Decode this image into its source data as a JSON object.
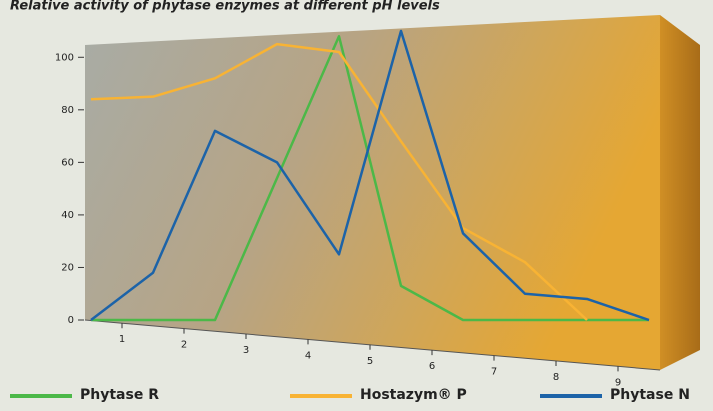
{
  "chart_data": {
    "type": "line",
    "title": "Relative activity of phytase enzymes at different pH levels",
    "x": [
      0.5,
      1.5,
      2.5,
      3.5,
      4.5,
      5.5,
      6.5,
      7.5,
      8.5,
      9.5
    ],
    "series": [
      {
        "name": "Phytase R",
        "color": "#4cb848",
        "values": [
          0,
          0,
          0,
          54,
          108,
          13,
          0,
          0,
          0,
          0
        ]
      },
      {
        "name": "Hostazym® P",
        "color": "#f8b334",
        "values": [
          84,
          85,
          92,
          105,
          102,
          68,
          35,
          22,
          0,
          null
        ]
      },
      {
        "name": "Phytase N",
        "color": "#1c63a8",
        "values": [
          0,
          18,
          72,
          60,
          25,
          110,
          33,
          10,
          8,
          0
        ]
      }
    ],
    "xlim": [
      0,
      10
    ],
    "xticks": [
      1,
      2,
      3,
      4,
      5,
      6,
      7,
      8,
      9
    ],
    "ylim": [
      0,
      110
    ],
    "yticks": [
      0,
      20,
      40,
      60,
      80,
      100
    ]
  }
}
